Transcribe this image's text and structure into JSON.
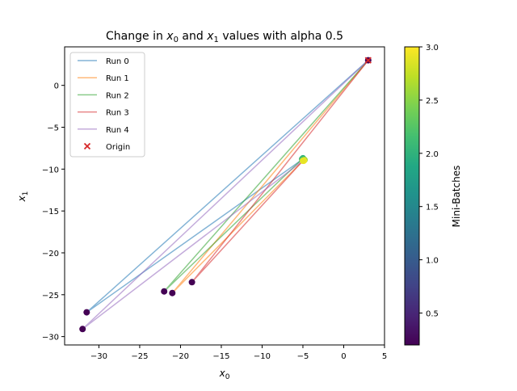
{
  "chart_data": {
    "type": "line",
    "title": "Change in x₀ and x₁ values with alpha 0.5",
    "xlabel": "x₀",
    "ylabel": "x₁",
    "xlim": [
      -34.2,
      5.0
    ],
    "ylim": [
      -31.0,
      4.6
    ],
    "xticks": [
      -30,
      -25,
      -20,
      -15,
      -10,
      -5,
      0,
      5
    ],
    "xtick_labels": [
      "−30",
      "−25",
      "−20",
      "−15",
      "−10",
      "−5",
      "0",
      "5"
    ],
    "yticks": [
      -30,
      -25,
      -20,
      -15,
      -10,
      -5,
      0
    ],
    "ytick_labels": [
      "−30",
      "−25",
      "−20",
      "−15",
      "−10",
      "−5",
      "0"
    ],
    "grid": false,
    "legend_position": "upper-left",
    "series": [
      {
        "name": "Run 0",
        "color": "#1f77b4",
        "x": [
          3,
          -31.5,
          -5
        ],
        "y": [
          3,
          -27.1,
          -8.8
        ]
      },
      {
        "name": "Run 1",
        "color": "#ff7f0e",
        "x": [
          3,
          -21,
          -5
        ],
        "y": [
          3,
          -24.8,
          -9
        ]
      },
      {
        "name": "Run 2",
        "color": "#2ca02c",
        "x": [
          3,
          -22,
          -5
        ],
        "y": [
          3,
          -24.6,
          -8.7
        ]
      },
      {
        "name": "Run 3",
        "color": "#d62728",
        "x": [
          3,
          -18.6,
          -5
        ],
        "y": [
          3,
          -23.5,
          -9
        ]
      },
      {
        "name": "Run 4",
        "color": "#9467bd",
        "x": [
          3,
          -32,
          -5
        ],
        "y": [
          3,
          -29.1,
          -9
        ]
      }
    ],
    "scatter_points": [
      {
        "x": 3,
        "y": 3,
        "c": 0.2
      },
      {
        "x": -31.5,
        "y": -27.1,
        "c": 0.2
      },
      {
        "x": -32,
        "y": -29.1,
        "c": 0.2
      },
      {
        "x": -22,
        "y": -24.6,
        "c": 0.2
      },
      {
        "x": -21,
        "y": -24.8,
        "c": 0.2
      },
      {
        "x": -18.6,
        "y": -23.5,
        "c": 0.2
      },
      {
        "x": -5,
        "y": -8.7,
        "c": 2.0
      },
      {
        "x": -5.1,
        "y": -8.8,
        "c": 2.1
      },
      {
        "x": -4.8,
        "y": -8.9,
        "c": 2.6
      },
      {
        "x": -4.9,
        "y": -9.0,
        "c": 3.0
      },
      {
        "x": -5.0,
        "y": -9.0,
        "c": 2.9
      }
    ],
    "origin": {
      "name": "Origin",
      "x": 3,
      "y": 3,
      "marker": "x",
      "color": "#d62728"
    },
    "colorbar": {
      "label": "Mini-Batches",
      "range": [
        0.2,
        3.0
      ],
      "ticks": [
        0.5,
        1.0,
        1.5,
        2.0,
        2.5,
        3.0
      ],
      "tick_labels": [
        "0.5",
        "1.0",
        "1.5",
        "2.0",
        "2.5",
        "3.0"
      ],
      "colormap": "viridis"
    }
  }
}
